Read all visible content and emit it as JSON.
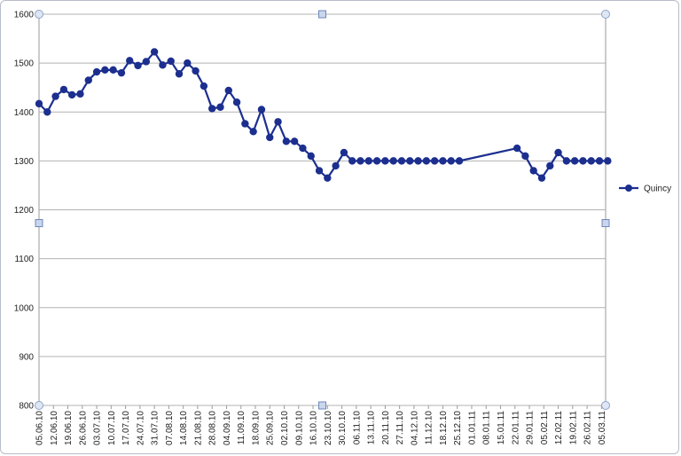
{
  "chart_data": {
    "type": "line",
    "title": "",
    "xlabel": "",
    "ylabel": "",
    "ylim": [
      800,
      1600
    ],
    "yticks": [
      "800",
      "900",
      "1000",
      "1100",
      "1200",
      "1300",
      "1400",
      "1500",
      "1600"
    ],
    "grid": true,
    "legend_position": "right",
    "x_tick_labels": [
      "05.06.10",
      "12.06.10",
      "19.06.10",
      "26.06.10",
      "03.07.10",
      "10.07.10",
      "17.07.10",
      "24.07.10",
      "31.07.10",
      "07.08.10",
      "14.08.10",
      "21.08.10",
      "28.08.10",
      "04.09.10",
      "11.09.10",
      "18.09.10",
      "25.09.10",
      "02.10.10",
      "09.10.10",
      "16.10.10",
      "23.10.10",
      "30.10.10",
      "06.11.10",
      "13.11.10",
      "20.11.10",
      "27.11.10",
      "04.12.10",
      "11.12.10",
      "18.12.10",
      "25.12.10",
      "01.01.11",
      "08.01.11",
      "15.01.11",
      "22.01.11",
      "29.01.11",
      "05.02.11",
      "12.02.11",
      "19.02.11",
      "26.02.11",
      "05.03.11"
    ],
    "x_tick_days": [
      0,
      7,
      14,
      21,
      28,
      35,
      42,
      49,
      56,
      63,
      70,
      77,
      84,
      91,
      98,
      105,
      112,
      119,
      126,
      133,
      140,
      147,
      154,
      161,
      168,
      175,
      182,
      189,
      196,
      203,
      210,
      217,
      224,
      231,
      238,
      245,
      252,
      259,
      266,
      273
    ],
    "series": [
      {
        "name": "Quincy",
        "color": "#1c2f8f",
        "x": [
          0,
          4,
          8,
          12,
          16,
          20,
          24,
          28,
          32,
          36,
          40,
          44,
          48,
          52,
          56,
          60,
          64,
          68,
          72,
          76,
          80,
          84,
          88,
          92,
          96,
          100,
          104,
          108,
          112,
          116,
          120,
          124,
          128,
          132,
          136,
          140,
          144,
          148,
          152,
          156,
          160,
          164,
          168,
          172,
          176,
          180,
          184,
          188,
          192,
          196,
          200,
          204,
          232,
          236,
          240,
          244,
          248,
          252,
          256,
          260,
          264,
          268,
          272,
          276
        ],
        "y": [
          1417,
          1400,
          1432,
          1446,
          1435,
          1437,
          1465,
          1482,
          1486,
          1486,
          1480,
          1505,
          1495,
          1503,
          1523,
          1496,
          1504,
          1478,
          1500,
          1484,
          1453,
          1407,
          1410,
          1444,
          1420,
          1376,
          1360,
          1405,
          1348,
          1380,
          1340,
          1340,
          1326,
          1310,
          1280,
          1265,
          1290,
          1317,
          1300,
          1300,
          1300,
          1300,
          1300,
          1300,
          1300,
          1300,
          1300,
          1300,
          1300,
          1300,
          1300,
          1300,
          1326,
          1310,
          1280,
          1265,
          1290,
          1317,
          1300,
          1300,
          1300,
          1300,
          1300,
          1300
        ]
      }
    ]
  }
}
